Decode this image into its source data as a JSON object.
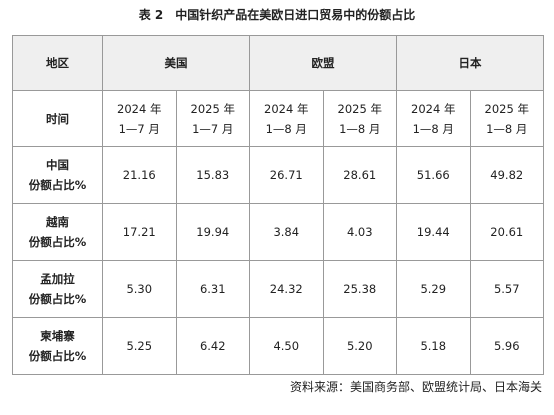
{
  "title": {
    "number": "表 2",
    "text": "中国针织产品在美欧日进口贸易中的份额占比"
  },
  "table": {
    "region_header": "地区",
    "regions": [
      "美国",
      "欧盟",
      "日本"
    ],
    "time_header": "时间",
    "periods": [
      {
        "year": "2024 年",
        "months": "1—7 月"
      },
      {
        "year": "2025 年",
        "months": "1—7 月"
      },
      {
        "year": "2024 年",
        "months": "1—8 月"
      },
      {
        "year": "2025 年",
        "months": "1—8 月"
      },
      {
        "year": "2024 年",
        "months": "1—8 月"
      },
      {
        "year": "2025 年",
        "months": "1—8 月"
      }
    ],
    "rows": [
      {
        "country": "中国",
        "metric": "份额占比%",
        "values": [
          "21.16",
          "15.83",
          "26.71",
          "28.61",
          "51.66",
          "49.82"
        ]
      },
      {
        "country": "越南",
        "metric": "份额占比%",
        "values": [
          "17.21",
          "19.94",
          "3.84",
          "4.03",
          "19.44",
          "20.61"
        ]
      },
      {
        "country": "孟加拉",
        "metric": "份额占比%",
        "values": [
          "5.30",
          "6.31",
          "24.32",
          "25.38",
          "5.29",
          "5.57"
        ]
      },
      {
        "country": "柬埔寨",
        "metric": "份额占比%",
        "values": [
          "5.25",
          "6.42",
          "4.50",
          "5.20",
          "5.18",
          "5.96"
        ]
      }
    ]
  },
  "source": "资料来源：美国商务部、欧盟统计局、日本海关"
}
